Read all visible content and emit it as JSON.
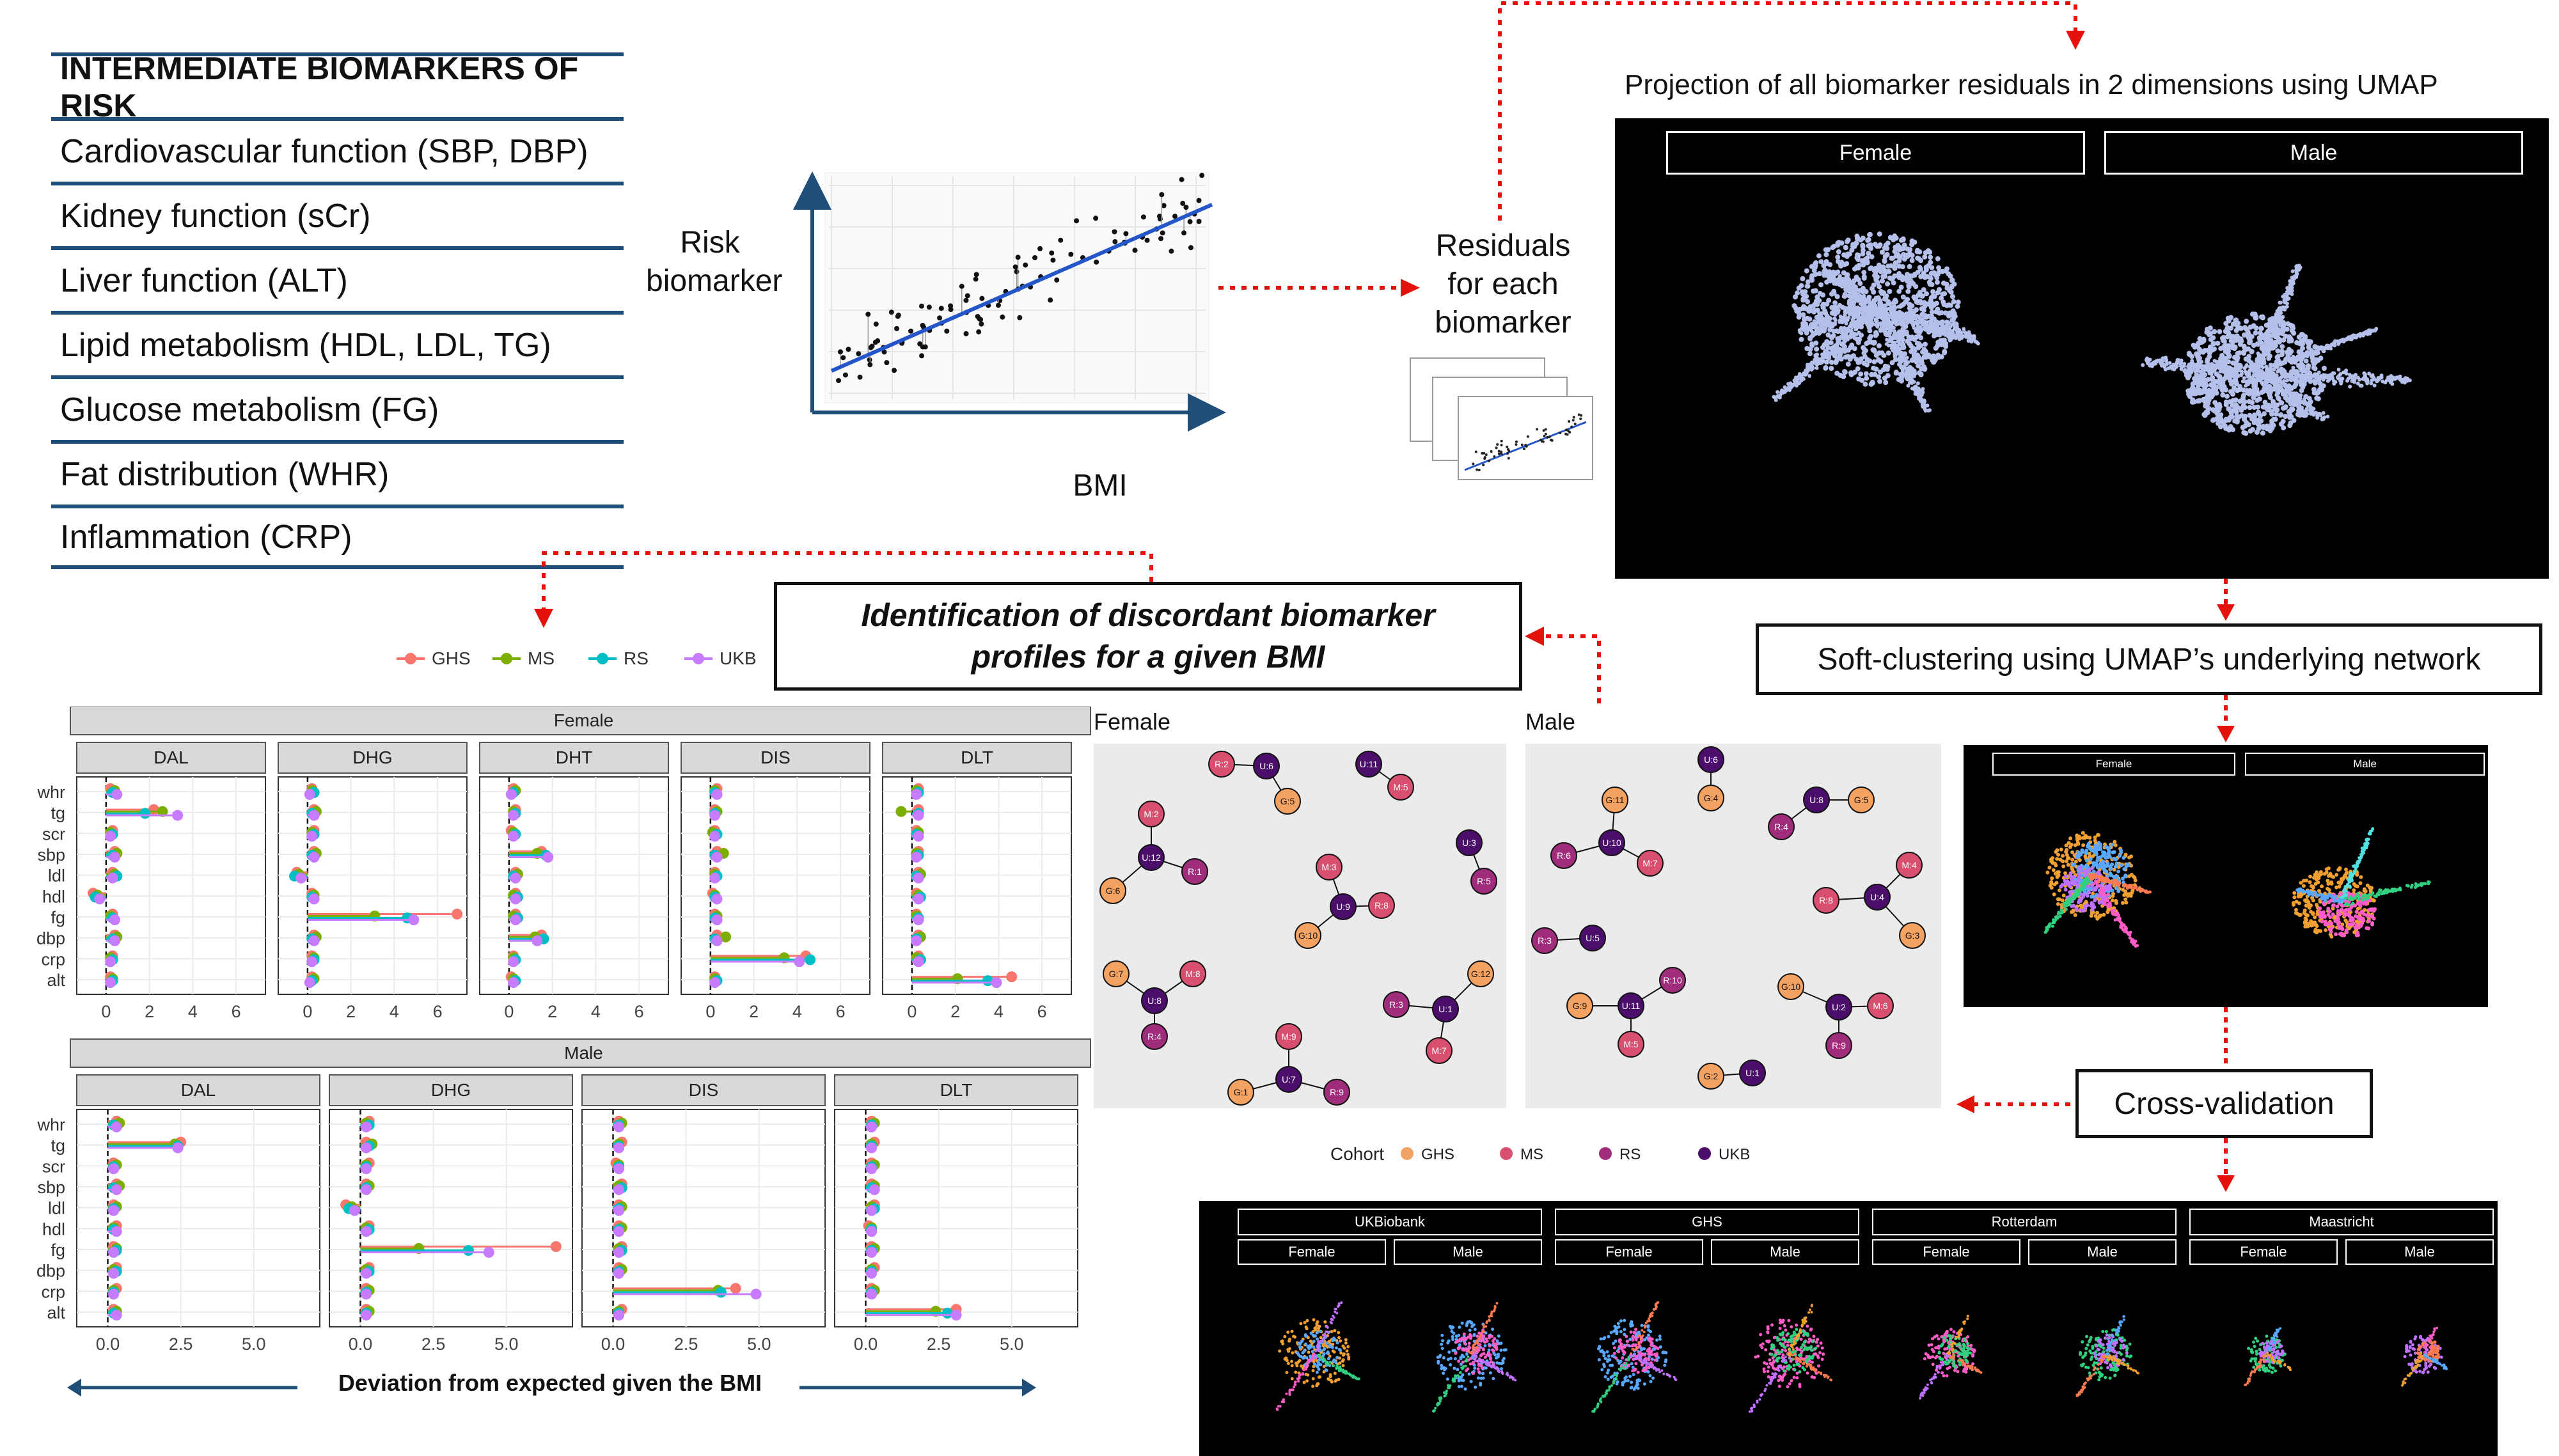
{
  "biomarkers": {
    "title": "INTERMEDIATE BIOMARKERS OF RISK",
    "items": [
      "Cardiovascular function (SBP, DBP)",
      "Kidney function (sCr)",
      "Liver function (ALT)",
      "Lipid metabolism (HDL, LDL, TG)",
      "Glucose metabolism (FG)",
      "Fat distribution (WHR)",
      "Inflammation (CRP)"
    ]
  },
  "regression": {
    "y_label": "Risk\nbiomarker",
    "x_label": "BMI"
  },
  "residuals": {
    "label": "Residuals\nfor each\nbiomarker"
  },
  "umap": {
    "title": "Projection of all biomarker residuals in 2 dimensions using UMAP",
    "facets": [
      "Female",
      "Male"
    ]
  },
  "soft_clustering": {
    "label": "Soft-clustering using UMAP’s underlying network"
  },
  "discordant": {
    "label": "Identification of discordant biomarker\nprofiles for a given BMI"
  },
  "cross_validation": {
    "label": "Cross-validation",
    "cohorts": [
      "UKBiobank",
      "GHS",
      "Rotterdam",
      "Maastricht"
    ],
    "sexes": [
      "Female",
      "Male"
    ]
  },
  "colors": {
    "GHS": "#f8766d",
    "MS": "#7cae00",
    "RS": "#00bfc4",
    "UKB": "#c77cff",
    "umap_points": "#b4c0ea",
    "arrow_red": "#e3120b",
    "frame_blue": "#1f4e79"
  },
  "dot_legend": [
    "GHS",
    "MS",
    "RS",
    "UKB"
  ],
  "network": {
    "facets": [
      "Female",
      "Male"
    ],
    "legend_title": "Cohort",
    "legend": [
      {
        "name": "GHS",
        "color": "#f4a261"
      },
      {
        "name": "MS",
        "color": "#d94f70"
      },
      {
        "name": "RS",
        "color": "#a02c7c"
      },
      {
        "name": "UKB",
        "color": "#4b0f6b"
      }
    ],
    "female_nodes": [
      {
        "id": "R:2",
        "c": "MS"
      },
      {
        "id": "U:6",
        "c": "UKB"
      },
      {
        "id": "G:5",
        "c": "GHS"
      },
      {
        "id": "U:11",
        "c": "UKB"
      },
      {
        "id": "M:5",
        "c": "MS"
      },
      {
        "id": "M:2",
        "c": "MS"
      },
      {
        "id": "U:12",
        "c": "UKB"
      },
      {
        "id": "R:1",
        "c": "RS"
      },
      {
        "id": "G:6",
        "c": "GHS"
      },
      {
        "id": "M:3",
        "c": "MS"
      },
      {
        "id": "U:9",
        "c": "UKB"
      },
      {
        "id": "R:8",
        "c": "MS"
      },
      {
        "id": "G:10",
        "c": "GHS"
      },
      {
        "id": "U:3",
        "c": "UKB"
      },
      {
        "id": "R:5",
        "c": "RS"
      },
      {
        "id": "G:7",
        "c": "GHS"
      },
      {
        "id": "M:8",
        "c": "MS"
      },
      {
        "id": "U:8",
        "c": "UKB"
      },
      {
        "id": "R:4",
        "c": "RS"
      },
      {
        "id": "R:3",
        "c": "RS"
      },
      {
        "id": "U:1",
        "c": "UKB"
      },
      {
        "id": "G:12",
        "c": "GHS"
      },
      {
        "id": "M:7",
        "c": "MS"
      },
      {
        "id": "M:9",
        "c": "MS"
      },
      {
        "id": "U:7",
        "c": "UKB"
      },
      {
        "id": "G:1",
        "c": "GHS"
      },
      {
        "id": "R:9",
        "c": "RS"
      }
    ],
    "male_nodes": [
      {
        "id": "U:6",
        "c": "UKB"
      },
      {
        "id": "G:4",
        "c": "GHS"
      },
      {
        "id": "G:11",
        "c": "GHS"
      },
      {
        "id": "U:10",
        "c": "UKB"
      },
      {
        "id": "R:6",
        "c": "RS"
      },
      {
        "id": "M:7",
        "c": "MS"
      },
      {
        "id": "U:8",
        "c": "UKB"
      },
      {
        "id": "G:5",
        "c": "GHS"
      },
      {
        "id": "R:4",
        "c": "RS"
      },
      {
        "id": "M:4",
        "c": "MS"
      },
      {
        "id": "U:4",
        "c": "UKB"
      },
      {
        "id": "R:8",
        "c": "MS"
      },
      {
        "id": "G:3",
        "c": "GHS"
      },
      {
        "id": "R:3",
        "c": "RS"
      },
      {
        "id": "U:5",
        "c": "UKB"
      },
      {
        "id": "R:10",
        "c": "RS"
      },
      {
        "id": "U:11",
        "c": "UKB"
      },
      {
        "id": "G:9",
        "c": "GHS"
      },
      {
        "id": "M:5",
        "c": "MS"
      },
      {
        "id": "G:10",
        "c": "GHS"
      },
      {
        "id": "U:2",
        "c": "UKB"
      },
      {
        "id": "M:6",
        "c": "MS"
      },
      {
        "id": "R:9",
        "c": "RS"
      },
      {
        "id": "G:2",
        "c": "GHS"
      },
      {
        "id": "U:1",
        "c": "UKB"
      }
    ]
  },
  "chart_data": [
    {
      "type": "dot-lollipop",
      "panel": "Female",
      "facets": [
        "DAL",
        "DHG",
        "DHT",
        "DIS",
        "DLT"
      ],
      "y_categories": [
        "whr",
        "tg",
        "scr",
        "sbp",
        "ldl",
        "hdl",
        "fg",
        "dbp",
        "crp",
        "alt"
      ],
      "x_ticks": [
        "0",
        "2",
        "4",
        "6"
      ],
      "xlim": [
        -1,
        7
      ],
      "series": [
        {
          "name": "GHS",
          "facets": [
            [
              0.2,
              2.2,
              0.3,
              0.4,
              0.3,
              -0.6,
              0.3,
              0.4,
              0.3,
              0.2
            ],
            [
              0.2,
              0.3,
              0.3,
              0.3,
              -0.5,
              0.2,
              6.9,
              0.3,
              0.2,
              0.2
            ],
            [
              0.2,
              0.3,
              0.1,
              1.5,
              0.3,
              0.3,
              0.3,
              1.5,
              0.2,
              0.1
            ],
            [
              0.3,
              0.2,
              0.2,
              0.3,
              0.2,
              0.1,
              0.2,
              0.3,
              4.4,
              0.2
            ],
            [
              0.3,
              0.3,
              0.2,
              0.3,
              0.3,
              0.2,
              0.2,
              0.3,
              0.3,
              4.6
            ]
          ]
        },
        {
          "name": "MS",
          "facets": [
            [
              0.4,
              2.6,
              0.2,
              0.5,
              0.4,
              -0.4,
              0.2,
              0.5,
              0.2,
              0.3
            ],
            [
              0.2,
              0.4,
              0.2,
              0.4,
              -0.4,
              0.3,
              3.1,
              0.4,
              0.3,
              0.3
            ],
            [
              0.3,
              0.2,
              0.2,
              1.3,
              0.4,
              0.2,
              0.2,
              1.2,
              0.2,
              0.2
            ],
            [
              0.2,
              0.3,
              0.1,
              0.6,
              0.2,
              0.2,
              0.3,
              0.7,
              3.4,
              0.2
            ],
            [
              0.2,
              -0.5,
              0.3,
              0.2,
              0.4,
              0.3,
              0.2,
              0.4,
              0.2,
              2.1
            ]
          ]
        },
        {
          "name": "RS",
          "facets": [
            [
              0.3,
              1.8,
              0.3,
              0.3,
              0.5,
              -0.5,
              0.3,
              0.3,
              0.3,
              0.3
            ],
            [
              0.3,
              0.2,
              0.3,
              0.2,
              -0.6,
              0.2,
              4.6,
              0.2,
              0.3,
              0.2
            ],
            [
              0.2,
              0.3,
              0.3,
              1.7,
              0.2,
              0.4,
              0.4,
              1.6,
              0.3,
              0.3
            ],
            [
              0.2,
              0.2,
              0.3,
              0.2,
              0.3,
              0.2,
              0.2,
              0.2,
              4.6,
              0.3
            ],
            [
              0.3,
              0.3,
              0.2,
              0.3,
              0.2,
              0.4,
              0.3,
              0.2,
              0.4,
              3.5
            ]
          ]
        },
        {
          "name": "UKB",
          "facets": [
            [
              0.5,
              3.3,
              0.2,
              0.4,
              0.3,
              -0.3,
              0.4,
              0.4,
              0.2,
              0.2
            ],
            [
              0.1,
              0.3,
              0.2,
              0.3,
              -0.3,
              0.3,
              4.9,
              0.3,
              0.2,
              0.1
            ],
            [
              0.1,
              0.2,
              0.2,
              1.8,
              0.3,
              0.3,
              0.3,
              1.3,
              0.2,
              0.2
            ],
            [
              0.3,
              0.2,
              0.2,
              0.3,
              0.2,
              0.3,
              0.3,
              0.3,
              4.1,
              0.2
            ],
            [
              0.2,
              0.3,
              0.3,
              0.2,
              0.3,
              0.3,
              0.3,
              0.2,
              0.3,
              3.9
            ]
          ]
        }
      ]
    },
    {
      "type": "dot-lollipop",
      "panel": "Male",
      "facets": [
        "DAL",
        "DHG",
        "DIS",
        "DLT"
      ],
      "y_categories": [
        "whr",
        "tg",
        "scr",
        "sbp",
        "ldl",
        "hdl",
        "fg",
        "dbp",
        "crp",
        "alt"
      ],
      "x_ticks": [
        "0.0",
        "2.5",
        "5.0"
      ],
      "xlim": [
        -0.8,
        7
      ],
      "series": [
        {
          "name": "GHS",
          "facets": [
            [
              0.3,
              2.5,
              0.2,
              0.3,
              0.2,
              0.3,
              0.2,
              0.3,
              0.3,
              0.2
            ],
            [
              0.3,
              0.2,
              0.3,
              0.2,
              -0.5,
              0.3,
              6.7,
              0.3,
              0.2,
              0.2
            ],
            [
              0.2,
              0.3,
              0.1,
              0.3,
              0.2,
              0.2,
              0.3,
              0.2,
              4.2,
              0.3
            ],
            [
              0.2,
              0.3,
              0.2,
              0.2,
              0.3,
              0.1,
              0.2,
              0.3,
              0.2,
              3.1
            ]
          ]
        },
        {
          "name": "MS",
          "facets": [
            [
              0.4,
              2.3,
              0.3,
              0.4,
              0.3,
              0.2,
              0.3,
              0.2,
              0.2,
              0.3
            ],
            [
              0.2,
              0.4,
              0.2,
              0.3,
              -0.3,
              0.2,
              2.0,
              0.2,
              0.3,
              0.3
            ],
            [
              0.3,
              0.2,
              0.2,
              0.2,
              0.3,
              0.3,
              0.2,
              0.3,
              3.6,
              0.2
            ],
            [
              0.3,
              0.2,
              0.3,
              0.3,
              0.2,
              0.2,
              0.3,
              0.2,
              0.3,
              2.4
            ]
          ]
        },
        {
          "name": "RS",
          "facets": [
            [
              0.2,
              2.4,
              0.2,
              0.2,
              0.2,
              0.2,
              0.3,
              0.3,
              0.2,
              0.2
            ],
            [
              0.3,
              0.3,
              0.2,
              0.2,
              -0.4,
              0.3,
              3.7,
              0.3,
              0.2,
              0.2
            ],
            [
              0.2,
              0.2,
              0.2,
              0.3,
              0.2,
              0.2,
              0.3,
              0.2,
              3.7,
              0.2
            ],
            [
              0.2,
              0.2,
              0.2,
              0.2,
              0.3,
              0.2,
              0.2,
              0.2,
              0.2,
              2.8
            ]
          ]
        },
        {
          "name": "UKB",
          "facets": [
            [
              0.3,
              2.4,
              0.2,
              0.3,
              0.2,
              0.3,
              0.2,
              0.2,
              0.2,
              0.3
            ],
            [
              0.2,
              0.2,
              0.2,
              0.2,
              -0.2,
              0.2,
              4.4,
              0.2,
              0.2,
              0.2
            ],
            [
              0.2,
              0.2,
              0.2,
              0.2,
              0.2,
              0.2,
              0.2,
              0.2,
              4.9,
              0.2
            ],
            [
              0.2,
              0.2,
              0.2,
              0.3,
              0.2,
              0.2,
              0.2,
              0.2,
              0.2,
              3.1
            ]
          ]
        }
      ]
    }
  ],
  "axis_caption": "Deviation from expected given the BMI"
}
